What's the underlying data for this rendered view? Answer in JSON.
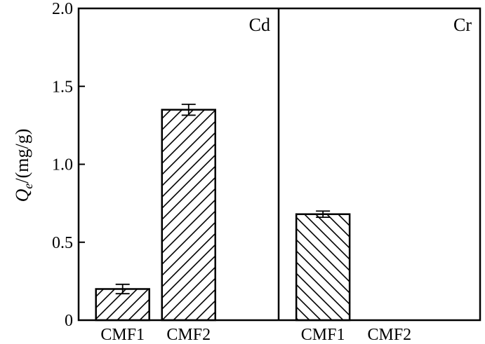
{
  "chart_data": {
    "type": "bar",
    "ylabel": {
      "symbol": "Q",
      "subscript": "e",
      "unit": "/(mg/g)"
    },
    "ylim": [
      0,
      2.0
    ],
    "yticks": [
      "0",
      "0.5",
      "1.0",
      "1.5",
      "2.0"
    ],
    "ytick_values": [
      0,
      0.5,
      1.0,
      1.5,
      2.0
    ],
    "categories": [
      "CMF1",
      "CMF2"
    ],
    "grid": false,
    "panels": [
      {
        "name": "Cd",
        "hatch": "forward",
        "bars": [
          {
            "category": "CMF1",
            "value": 0.2,
            "error": 0.03
          },
          {
            "category": "CMF2",
            "value": 1.35,
            "error": 0.035
          }
        ]
      },
      {
        "name": "Cr",
        "hatch": "backward",
        "bars": [
          {
            "category": "CMF1",
            "value": 0.68,
            "error": 0.02
          },
          {
            "category": "CMF2",
            "value": 0,
            "error": 0
          }
        ]
      }
    ]
  }
}
